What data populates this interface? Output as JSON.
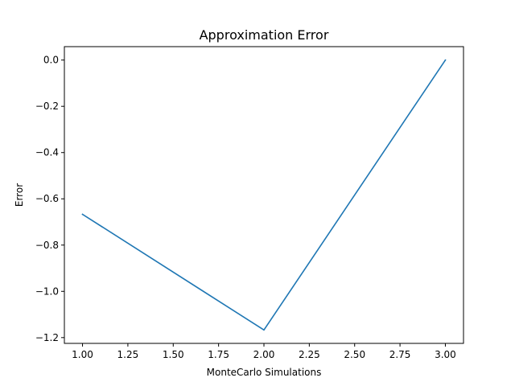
{
  "chart_data": {
    "type": "line",
    "title": "Approximation Error",
    "xlabel": "MonteCarlo Simulations",
    "ylabel": "Error",
    "xlim": [
      0.9,
      3.1
    ],
    "ylim": [
      -1.225,
      0.058
    ],
    "x_ticks": [
      1.0,
      1.25,
      1.5,
      1.75,
      2.0,
      2.25,
      2.5,
      2.75,
      3.0
    ],
    "x_tick_labels": [
      "1.00",
      "1.25",
      "1.50",
      "1.75",
      "2.00",
      "2.25",
      "2.50",
      "2.75",
      "3.00"
    ],
    "y_ticks": [
      0.0,
      -0.2,
      -0.4,
      -0.6,
      -0.8,
      -1.0,
      -1.2
    ],
    "y_tick_labels": [
      "0.0",
      "−0.2",
      "−0.4",
      "−0.6",
      "−0.8",
      "−1.0",
      "−1.2"
    ],
    "grid": false,
    "series": [
      {
        "x": [
          1,
          2,
          3
        ],
        "y": [
          -0.667,
          -1.167,
          0.0
        ],
        "color": "#1f77b4"
      }
    ]
  }
}
